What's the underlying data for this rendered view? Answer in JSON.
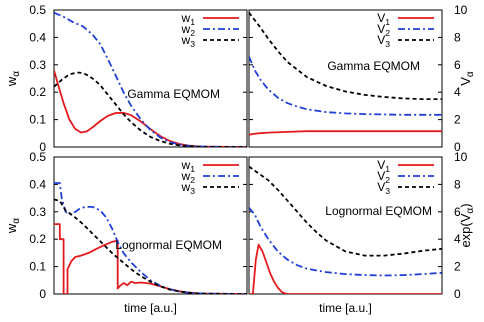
{
  "figure": {
    "shared_xlabel": "time [a.u.]"
  },
  "chart_data": [
    {
      "type": "line",
      "panel": "top-left",
      "annotation": "Gamma EQMOM",
      "ylabel": "w_α",
      "xlabel": "",
      "ylim": [
        0,
        0.5
      ],
      "xlim": [
        0,
        1
      ],
      "y_ticks": [
        "0",
        "0.1",
        "0.2",
        "0.3",
        "0.4",
        "0.5"
      ],
      "y_axis_side": "left",
      "grid": false,
      "legend_position": "top-right",
      "series": [
        {
          "name": "w1",
          "label_base": "w",
          "label_sub": "1",
          "color": "#e41a1c",
          "dash": "solid",
          "x": [
            0,
            0.02,
            0.05,
            0.08,
            0.11,
            0.14,
            0.17,
            0.2,
            0.24,
            0.28,
            0.32,
            0.36,
            0.4,
            0.45,
            0.5,
            0.55,
            0.6,
            0.65,
            0.7,
            0.75,
            0.8,
            1.0
          ],
          "y": [
            0.28,
            0.23,
            0.16,
            0.1,
            0.066,
            0.053,
            0.057,
            0.072,
            0.095,
            0.114,
            0.124,
            0.125,
            0.116,
            0.093,
            0.065,
            0.04,
            0.022,
            0.011,
            0.005,
            0.002,
            0.001,
            0
          ]
        },
        {
          "name": "w2",
          "label_base": "w",
          "label_sub": "2",
          "color": "#1f3fd6",
          "dash": "dashdot",
          "x": [
            0,
            0.05,
            0.1,
            0.15,
            0.2,
            0.24,
            0.28,
            0.32,
            0.36,
            0.4,
            0.45,
            0.5,
            0.55,
            0.6,
            0.65,
            0.7,
            0.75,
            0.8,
            0.9,
            1.0
          ],
          "y": [
            0.49,
            0.475,
            0.455,
            0.44,
            0.41,
            0.375,
            0.32,
            0.26,
            0.2,
            0.15,
            0.1,
            0.062,
            0.035,
            0.018,
            0.009,
            0.004,
            0.002,
            0.001,
            0,
            0
          ]
        },
        {
          "name": "w3",
          "label_base": "w",
          "label_sub": "3",
          "color": "#000000",
          "dash": "dashed",
          "x": [
            0,
            0.04,
            0.08,
            0.12,
            0.15,
            0.18,
            0.21,
            0.24,
            0.28,
            0.32,
            0.36,
            0.4,
            0.45,
            0.5,
            0.55,
            0.6,
            0.65,
            0.7,
            0.75,
            0.8,
            1.0
          ],
          "y": [
            0.22,
            0.245,
            0.265,
            0.272,
            0.27,
            0.26,
            0.245,
            0.225,
            0.19,
            0.155,
            0.12,
            0.09,
            0.06,
            0.037,
            0.022,
            0.012,
            0.006,
            0.003,
            0.001,
            0,
            0
          ]
        }
      ]
    },
    {
      "type": "line",
      "panel": "top-right",
      "annotation": "Gamma EQMOM",
      "ylabel": "V_α",
      "xlabel": "",
      "ylim": [
        0,
        10
      ],
      "xlim": [
        0,
        1
      ],
      "y_ticks": [
        "0",
        "2",
        "4",
        "6",
        "8",
        "10"
      ],
      "y_axis_side": "right",
      "grid": false,
      "legend_position": "top-right",
      "series": [
        {
          "name": "V1",
          "label_base": "V",
          "label_sub": "1",
          "color": "#e41a1c",
          "dash": "solid",
          "x": [
            0,
            0.02,
            0.05,
            0.1,
            0.2,
            0.3,
            0.5,
            0.7,
            1.0
          ],
          "y": [
            0.9,
            0.95,
            1.0,
            1.05,
            1.1,
            1.15,
            1.15,
            1.15,
            1.15
          ]
        },
        {
          "name": "V2",
          "label_base": "V",
          "label_sub": "2",
          "color": "#1f3fd6",
          "dash": "dashdot",
          "x": [
            0,
            0.03,
            0.06,
            0.1,
            0.15,
            0.2,
            0.25,
            0.3,
            0.4,
            0.5,
            0.6,
            0.8,
            1.0
          ],
          "y": [
            6.6,
            5.6,
            4.9,
            4.2,
            3.6,
            3.2,
            2.95,
            2.75,
            2.55,
            2.45,
            2.4,
            2.35,
            2.35
          ]
        },
        {
          "name": "V3",
          "label_base": "V",
          "label_sub": "3",
          "color": "#000000",
          "dash": "dashed",
          "x": [
            0,
            0.05,
            0.1,
            0.15,
            0.2,
            0.3,
            0.4,
            0.5,
            0.6,
            0.7,
            0.8,
            0.9,
            1.0
          ],
          "y": [
            9.8,
            8.9,
            7.9,
            7.0,
            6.2,
            5.1,
            4.45,
            4.05,
            3.8,
            3.65,
            3.55,
            3.5,
            3.5
          ]
        }
      ]
    },
    {
      "type": "line",
      "panel": "bottom-left",
      "annotation": "Lognormal EQMOM",
      "ylabel": "w_α",
      "xlabel": "time [a.u.]",
      "ylim": [
        0,
        0.5
      ],
      "xlim": [
        0,
        1
      ],
      "y_ticks": [
        "0",
        "0.1",
        "0.2",
        "0.3",
        "0.4",
        "0.5"
      ],
      "y_axis_side": "left",
      "grid": false,
      "legend_position": "top-right",
      "series": [
        {
          "name": "w1",
          "label_base": "w",
          "label_sub": "1",
          "color": "#e41a1c",
          "dash": "solid",
          "x": [
            0,
            0.03,
            0.03,
            0.05,
            0.05,
            0.07,
            0.07,
            0.09,
            0.11,
            0.14,
            0.18,
            0.22,
            0.26,
            0.3,
            0.33,
            0.33,
            0.34,
            0.36,
            0.38,
            0.4,
            0.42,
            0.45,
            0.5,
            0.55,
            0.6,
            0.65,
            0.7,
            0.75,
            0.8,
            1.0
          ],
          "y": [
            0.255,
            0.255,
            0.2,
            0.2,
            0.0,
            0.0,
            0.09,
            0.12,
            0.135,
            0.14,
            0.15,
            0.165,
            0.178,
            0.19,
            0.195,
            0.02,
            0.028,
            0.04,
            0.032,
            0.045,
            0.04,
            0.042,
            0.038,
            0.028,
            0.018,
            0.01,
            0.005,
            0.002,
            0.001,
            0
          ]
        },
        {
          "name": "w2",
          "label_base": "w",
          "label_sub": "2",
          "color": "#1f3fd6",
          "dash": "dashdot",
          "x": [
            0,
            0.03,
            0.04,
            0.06,
            0.08,
            0.1,
            0.13,
            0.16,
            0.2,
            0.24,
            0.27,
            0.3,
            0.33,
            0.36,
            0.4,
            0.45,
            0.5,
            0.55,
            0.6,
            0.65,
            0.7,
            0.8,
            1.0
          ],
          "y": [
            0.405,
            0.405,
            0.35,
            0.3,
            0.29,
            0.295,
            0.31,
            0.318,
            0.318,
            0.305,
            0.28,
            0.24,
            0.19,
            0.15,
            0.115,
            0.08,
            0.05,
            0.03,
            0.017,
            0.009,
            0.004,
            0.001,
            0
          ]
        },
        {
          "name": "w3",
          "label_base": "w",
          "label_sub": "3",
          "color": "#000000",
          "dash": "dashed",
          "x": [
            0,
            0.03,
            0.06,
            0.1,
            0.15,
            0.2,
            0.25,
            0.3,
            0.35,
            0.4,
            0.45,
            0.5,
            0.55,
            0.6,
            0.65,
            0.7,
            0.75,
            0.8,
            0.9,
            1.0
          ],
          "y": [
            0.345,
            0.34,
            0.305,
            0.285,
            0.255,
            0.22,
            0.185,
            0.15,
            0.12,
            0.09,
            0.065,
            0.045,
            0.028,
            0.016,
            0.009,
            0.005,
            0.002,
            0.001,
            0,
            0
          ]
        }
      ]
    },
    {
      "type": "line",
      "panel": "bottom-right",
      "annotation": "Lognormal EQMOM",
      "ylabel": "exp(V_α)",
      "xlabel": "time [a.u.]",
      "ylim": [
        0,
        10
      ],
      "xlim": [
        0,
        1
      ],
      "y_ticks": [
        "0",
        "2",
        "4",
        "6",
        "8",
        "10"
      ],
      "y_axis_side": "right",
      "grid": false,
      "legend_position": "top-right",
      "series": [
        {
          "name": "V1",
          "label_base": "V",
          "label_sub": "1",
          "color": "#e41a1c",
          "dash": "solid",
          "x": [
            0,
            0.02,
            0.035,
            0.05,
            0.07,
            0.09,
            0.11,
            0.13,
            0.15,
            0.17,
            0.19,
            0.2,
            1.0
          ],
          "y": [
            0,
            0,
            2.5,
            3.6,
            3.1,
            2.3,
            1.5,
            0.9,
            0.45,
            0.15,
            0.02,
            0,
            0
          ]
        },
        {
          "name": "V2",
          "label_base": "V",
          "label_sub": "2",
          "color": "#1f3fd6",
          "dash": "dashdot",
          "x": [
            0,
            0.03,
            0.06,
            0.1,
            0.15,
            0.2,
            0.25,
            0.3,
            0.4,
            0.5,
            0.6,
            0.7,
            0.8,
            0.9,
            1.0
          ],
          "y": [
            6.3,
            5.8,
            4.9,
            4.0,
            3.1,
            2.5,
            2.1,
            1.85,
            1.6,
            1.45,
            1.38,
            1.35,
            1.38,
            1.45,
            1.55
          ]
        },
        {
          "name": "V3",
          "label_base": "V",
          "label_sub": "3",
          "color": "#000000",
          "dash": "dashed",
          "x": [
            0,
            0.05,
            0.1,
            0.15,
            0.2,
            0.25,
            0.3,
            0.35,
            0.4,
            0.5,
            0.6,
            0.7,
            0.8,
            0.9,
            1.0
          ],
          "y": [
            9.3,
            8.8,
            8.3,
            7.6,
            6.8,
            6.0,
            5.2,
            4.5,
            3.9,
            3.1,
            2.8,
            2.8,
            2.95,
            3.15,
            3.3
          ]
        }
      ]
    }
  ]
}
